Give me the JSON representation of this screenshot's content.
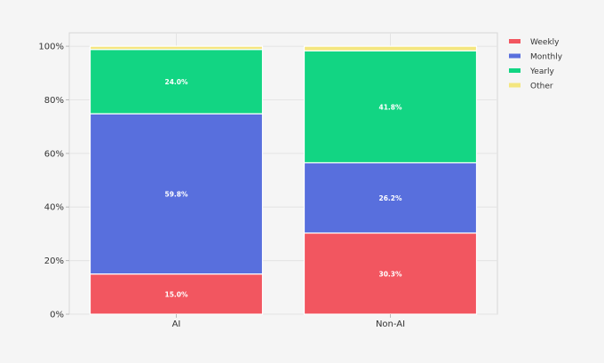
{
  "chart_data": {
    "type": "bar",
    "stacked": true,
    "categories": [
      "AI",
      "Non-AI"
    ],
    "series": [
      {
        "name": "Weekly",
        "color": "#f25660",
        "values": [
          15.0,
          30.3
        ],
        "labels": [
          "15.0%",
          "30.3%"
        ]
      },
      {
        "name": "Monthly",
        "color": "#586fdd",
        "values": [
          59.8,
          26.2
        ],
        "labels": [
          "59.8%",
          "26.2%"
        ]
      },
      {
        "name": "Yearly",
        "color": "#12d583",
        "values": [
          24.0,
          41.8
        ],
        "labels": [
          "24.0%",
          "41.8%"
        ]
      },
      {
        "name": "Other",
        "color": "#f4e67f",
        "values": [
          1.2,
          1.7
        ],
        "labels": [
          "",
          ""
        ]
      }
    ],
    "y_ticks": [
      {
        "value": 0,
        "label": "0%"
      },
      {
        "value": 20,
        "label": "20%"
      },
      {
        "value": 40,
        "label": "40%"
      },
      {
        "value": 60,
        "label": "60%"
      },
      {
        "value": 80,
        "label": "80%"
      },
      {
        "value": 100,
        "label": "100%"
      }
    ],
    "ylim": [
      0,
      105
    ],
    "grid": true,
    "legend_position": "top-right",
    "background": "#f5f5f5",
    "plot_background": "#f5f5f5",
    "grid_color": "#e4e4e4"
  }
}
